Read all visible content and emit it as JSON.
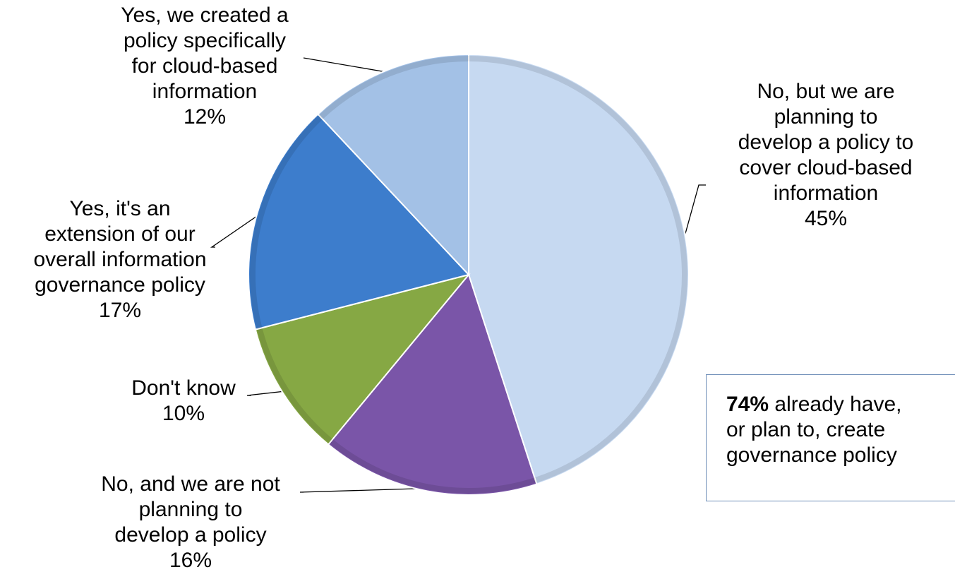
{
  "chart_data": {
    "type": "pie",
    "slices": [
      {
        "lines": [
          "No, but we are",
          "planning to",
          "develop a policy to",
          "cover cloud-based",
          "information"
        ],
        "percent_label": "45%",
        "value": 45,
        "color": "#c6d9f1"
      },
      {
        "lines": [
          "No, and we are not",
          "planning to",
          "develop a policy"
        ],
        "percent_label": "16%",
        "value": 16,
        "color": "#7a55a8"
      },
      {
        "lines": [
          "Don't know"
        ],
        "percent_label": "10%",
        "value": 10,
        "color": "#86a844"
      },
      {
        "lines": [
          "Yes, it's an",
          "extension of our",
          "overall information",
          "governance policy"
        ],
        "percent_label": "17%",
        "value": 17,
        "color": "#3d7dcc"
      },
      {
        "lines": [
          "Yes, we created a",
          "policy specifically",
          "for cloud-based",
          "information"
        ],
        "percent_label": "12%",
        "value": 12,
        "color": "#a3c1e6"
      }
    ]
  },
  "callout": {
    "highlight": "74%",
    "line1_rest": " already have,",
    "line2": "or plan to, create",
    "line3": "governance policy"
  }
}
